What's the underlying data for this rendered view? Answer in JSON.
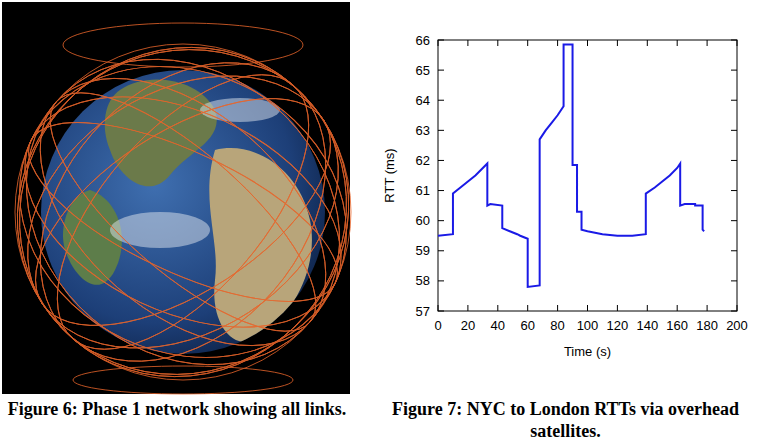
{
  "chart_data": {
    "type": "line",
    "xlabel": "Time (s)",
    "ylabel": "RTT (ms)",
    "color": "#1a1ae6",
    "x": [
      0,
      10,
      10,
      15,
      20,
      25,
      30,
      33,
      33,
      35,
      43,
      43,
      48,
      53,
      55,
      60,
      60,
      68,
      68,
      72,
      76,
      80,
      84,
      84,
      90,
      90,
      93,
      93,
      96,
      96,
      100,
      110,
      120,
      130,
      139,
      139,
      145,
      150,
      155,
      160,
      162,
      162,
      165,
      172,
      172,
      177,
      177,
      178
    ],
    "values": [
      59.5,
      59.55,
      60.9,
      61.1,
      61.3,
      61.5,
      61.75,
      61.9,
      60.5,
      60.55,
      60.5,
      59.75,
      59.65,
      59.55,
      59.5,
      59.4,
      57.8,
      57.85,
      62.7,
      63.0,
      63.25,
      63.5,
      63.8,
      65.85,
      65.85,
      61.85,
      61.85,
      60.3,
      60.3,
      59.7,
      59.65,
      59.55,
      59.5,
      59.5,
      59.55,
      60.9,
      61.1,
      61.3,
      61.5,
      61.75,
      61.9,
      60.5,
      60.55,
      60.55,
      60.5,
      60.5,
      59.7,
      59.65
    ],
    "xlim": [
      0,
      200
    ],
    "xticks": [
      0,
      20,
      40,
      60,
      80,
      100,
      120,
      140,
      160,
      180,
      200
    ],
    "ylim": [
      57,
      66
    ],
    "yticks": [
      57,
      58,
      59,
      60,
      61,
      62,
      63,
      64,
      65,
      66
    ],
    "grid": false
  },
  "captions": [
    "Figure 6: Phase 1 network showing all links.",
    "Figure 7: NYC to London RTTs via overhead satellites."
  ]
}
